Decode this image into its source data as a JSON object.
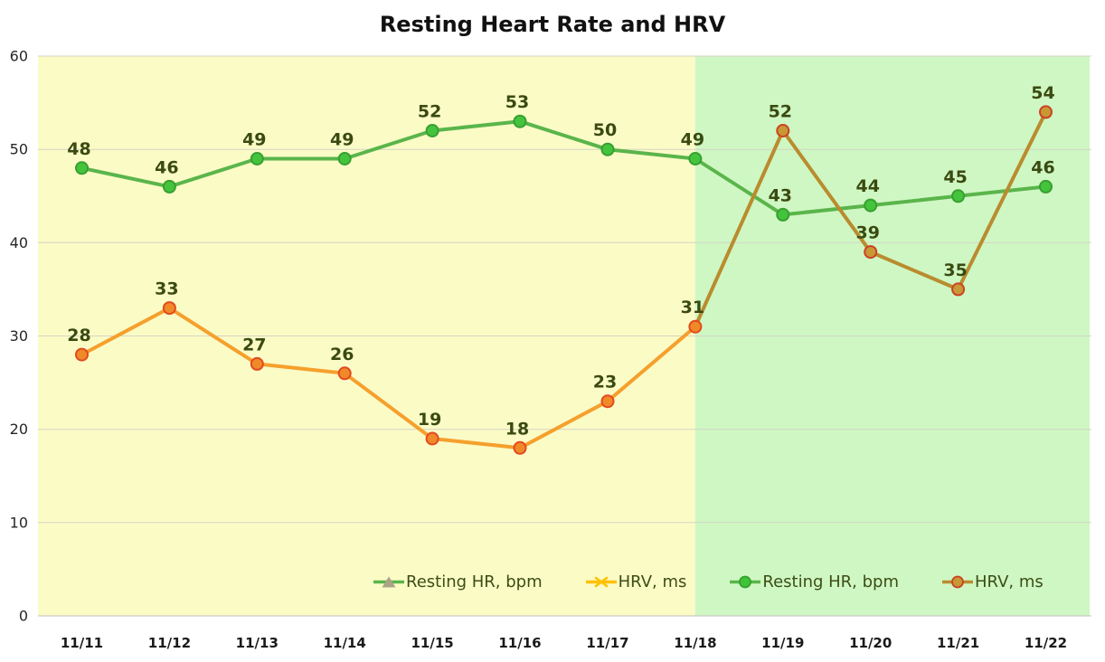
{
  "title": "Resting Heart Rate and HRV",
  "chart_data": {
    "type": "line",
    "title": "Resting Heart Rate and HRV",
    "categories": [
      "11/11",
      "11/12",
      "11/13",
      "11/14",
      "11/15",
      "11/16",
      "11/17",
      "11/18",
      "11/19",
      "11/20",
      "11/21",
      "11/22"
    ],
    "series": [
      {
        "name": "Resting HR, bpm",
        "values": [
          48,
          46,
          49,
          49,
          52,
          53,
          50,
          49,
          43,
          44,
          45,
          46
        ],
        "line_width": 4,
        "line_segments": [
          {
            "from": 0,
            "to": 11,
            "color": "#5ab54b"
          }
        ],
        "marker": "circle",
        "marker_fill": "#44c43c",
        "marker_stroke": "#389f31"
      },
      {
        "name": "HRV, ms",
        "values": [
          28,
          33,
          27,
          26,
          19,
          18,
          23,
          31,
          52,
          39,
          35,
          54
        ],
        "line_width": 4,
        "line_segments": [
          {
            "from": 0,
            "to": 7,
            "color": "#f5a02d"
          },
          {
            "from": 7,
            "to": 11,
            "color": "#b98c2e"
          }
        ],
        "marker": "circle",
        "marker_fill": "#f08a28",
        "marker_stroke": "#e2491f",
        "marker_overrides": [
          {
            "from": 8,
            "to": 11,
            "fill": "#c79833",
            "stroke": "#cc4125"
          }
        ]
      }
    ],
    "data_labels": true,
    "data_label_color": "#3a4a11",
    "xlabel": "",
    "ylabel": "",
    "ylim": [
      0,
      60
    ],
    "yticks": [
      0,
      10,
      20,
      30,
      40,
      50,
      60
    ],
    "grid": true,
    "grid_color": "#d4d6c4",
    "axis_line_color": "#bfbfbf",
    "tick_label_color": "#262626",
    "background_regions": [
      {
        "color": "#fbfbc6",
        "from_center_index": -0.5,
        "to_center_index": 7
      },
      {
        "color": "#cff7c3",
        "from_center_index": 7,
        "to_center_index": 11.5
      }
    ],
    "legend_position": "bottom-inside",
    "legend_text_color": "#3c4d14",
    "legend": [
      {
        "label": "Resting HR, bpm",
        "glyph": "triangle",
        "line_color": "#5ab54b",
        "marker_color": "#aba387"
      },
      {
        "label": "HRV, ms",
        "glyph": "x",
        "line_color": "#ffc104",
        "marker_color": "#ffc104"
      },
      {
        "label": "Resting HR, bpm",
        "glyph": "circle",
        "line_color": "#5ab54b",
        "marker_color": "#3fc439",
        "marker_stroke": "#35a02e"
      },
      {
        "label": "HRV, ms",
        "glyph": "circle",
        "line_color": "#b98c2e",
        "marker_color": "#c79833",
        "marker_stroke": "#cc4125"
      }
    ]
  }
}
